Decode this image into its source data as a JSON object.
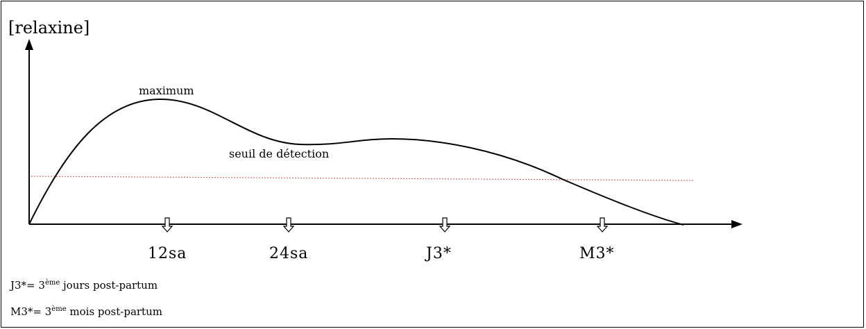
{
  "y_axis_label": "[relaxine]",
  "annotations": {
    "maximum": "maximum",
    "threshold": "seuil de détection"
  },
  "ticks": [
    "12sa",
    "24sa",
    "J3*",
    "M3*"
  ],
  "footnotes": [
    {
      "prefix": "J3*= 3",
      "sup": "ème",
      "suffix": " jours post-partum"
    },
    {
      "prefix": "M3*= 3",
      "sup": "ème",
      "suffix": " mois post-partum"
    }
  ],
  "colors": {
    "curve": "#000000",
    "threshold_line": "#e06666",
    "axes": "#000000"
  },
  "icons": {
    "tick_marker": "hollow-down-arrow-icon"
  }
}
